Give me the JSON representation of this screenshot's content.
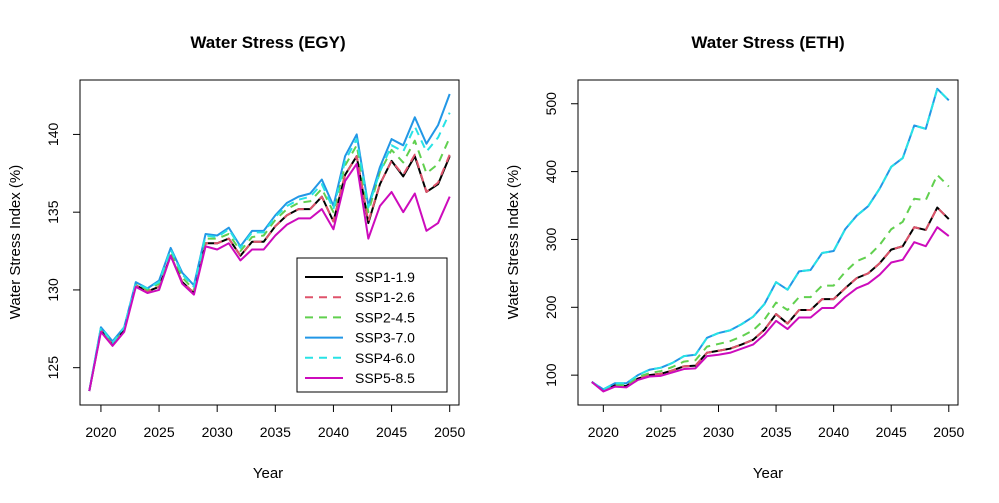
{
  "chart_data": [
    {
      "type": "line",
      "title": "Water Stress (EGY)",
      "xlabel": "Year",
      "ylabel": "Water Stress Index (%)",
      "xlim": [
        2019,
        2050
      ],
      "ylim": [
        123,
        143
      ],
      "xticks": [
        2020,
        2025,
        2030,
        2035,
        2040,
        2045,
        2050
      ],
      "yticks": [
        125,
        130,
        135,
        140
      ],
      "legend": "bottom-right",
      "x": [
        2019,
        2020,
        2021,
        2022,
        2023,
        2024,
        2025,
        2026,
        2027,
        2028,
        2029,
        2030,
        2031,
        2032,
        2033,
        2034,
        2035,
        2036,
        2037,
        2038,
        2039,
        2040,
        2041,
        2042,
        2043,
        2044,
        2045,
        2046,
        2047,
        2048,
        2049,
        2050
      ],
      "series": [
        {
          "name": "SSP1-1.9",
          "color": "#000000",
          "dash": "solid",
          "values": [
            123.5,
            127.4,
            126.5,
            127.4,
            130.3,
            129.9,
            130.2,
            132.2,
            130.5,
            129.8,
            133.0,
            133.0,
            133.3,
            132.2,
            133.1,
            133.1,
            134.1,
            134.8,
            135.2,
            135.2,
            136.0,
            134.4,
            137.4,
            138.6,
            134.3,
            136.8,
            138.3,
            137.3,
            138.6,
            136.3,
            136.8,
            138.6
          ]
        },
        {
          "name": "SSP1-2.6",
          "color": "#DF536B",
          "dash": "dashed",
          "values": [
            123.5,
            127.4,
            126.5,
            127.4,
            130.3,
            129.9,
            130.2,
            132.2,
            130.5,
            129.8,
            133.0,
            133.0,
            133.3,
            132.2,
            133.1,
            133.1,
            134.1,
            134.8,
            135.2,
            135.2,
            136.0,
            134.4,
            137.4,
            138.6,
            134.4,
            136.8,
            138.3,
            137.4,
            138.7,
            136.3,
            136.9,
            138.7
          ]
        },
        {
          "name": "SSP2-4.5",
          "color": "#61D04F",
          "dash": "dashed",
          "values": [
            123.5,
            127.5,
            126.6,
            127.5,
            130.4,
            130.0,
            130.4,
            132.5,
            130.8,
            130.0,
            133.3,
            133.3,
            133.6,
            132.5,
            133.4,
            133.5,
            134.5,
            135.2,
            135.6,
            135.7,
            136.5,
            135.0,
            138.0,
            139.3,
            135.0,
            137.6,
            139.0,
            138.2,
            139.6,
            137.5,
            138.1,
            139.8
          ]
        },
        {
          "name": "SSP3-7.0",
          "color": "#2297E6",
          "dash": "solid",
          "values": [
            123.5,
            127.6,
            126.7,
            127.6,
            130.5,
            130.1,
            130.6,
            132.7,
            131.1,
            130.3,
            133.6,
            133.5,
            134.0,
            132.8,
            133.8,
            133.8,
            134.8,
            135.6,
            136.0,
            136.2,
            137.1,
            135.4,
            138.6,
            140.0,
            135.4,
            137.9,
            139.7,
            139.3,
            141.1,
            139.4,
            140.6,
            142.6
          ]
        },
        {
          "name": "SSP4-6.0",
          "color": "#28E2E5",
          "dash": "dashed",
          "values": [
            123.5,
            127.6,
            126.6,
            127.6,
            130.4,
            130.1,
            130.5,
            132.6,
            131.0,
            130.2,
            133.5,
            133.4,
            133.9,
            132.7,
            133.7,
            133.7,
            134.7,
            135.4,
            135.8,
            136.0,
            136.8,
            135.2,
            138.3,
            139.7,
            135.3,
            137.6,
            139.3,
            138.9,
            140.5,
            138.9,
            139.8,
            141.4
          ]
        },
        {
          "name": "SSP5-8.5",
          "color": "#CD0BBC",
          "dash": "solid",
          "values": [
            123.5,
            127.3,
            126.4,
            127.3,
            130.2,
            129.8,
            130.0,
            132.2,
            130.4,
            129.7,
            132.8,
            132.6,
            133.0,
            131.9,
            132.6,
            132.6,
            133.5,
            134.2,
            134.6,
            134.6,
            135.2,
            133.9,
            137.0,
            138.1,
            133.3,
            135.4,
            136.3,
            135.0,
            136.2,
            133.8,
            134.3,
            136.0
          ]
        }
      ]
    },
    {
      "type": "line",
      "title": "Water Stress (ETH)",
      "xlabel": "Year",
      "ylabel": "Water Stress Index (%)",
      "xlim": [
        2019,
        2050
      ],
      "ylim": [
        75,
        520
      ],
      "xticks": [
        2020,
        2025,
        2030,
        2035,
        2040,
        2045,
        2050
      ],
      "yticks": [
        100,
        200,
        300,
        400,
        500
      ],
      "x": [
        2019,
        2020,
        2021,
        2022,
        2023,
        2024,
        2025,
        2026,
        2027,
        2028,
        2029,
        2030,
        2031,
        2032,
        2033,
        2034,
        2035,
        2036,
        2037,
        2038,
        2039,
        2040,
        2041,
        2042,
        2043,
        2044,
        2045,
        2046,
        2047,
        2048,
        2049,
        2050
      ],
      "series": [
        {
          "name": "SSP1-1.9",
          "color": "#000000",
          "dash": "solid",
          "values": [
            90,
            77,
            85,
            84,
            95,
            100,
            102,
            107,
            113,
            114,
            133,
            136,
            139,
            145,
            152,
            167,
            190,
            176,
            196,
            196,
            212,
            212,
            228,
            243,
            250,
            265,
            285,
            290,
            318,
            314,
            347,
            330
          ]
        },
        {
          "name": "SSP1-2.6",
          "color": "#DF536B",
          "dash": "dashed",
          "values": [
            90,
            77,
            85,
            84,
            95,
            100,
            102,
            107,
            113,
            114,
            133,
            136,
            139,
            145,
            152,
            167,
            190,
            176,
            196,
            196,
            212,
            212,
            228,
            243,
            250,
            265,
            285,
            290,
            318,
            314,
            347,
            330
          ]
        },
        {
          "name": "SSP2-4.5",
          "color": "#61D04F",
          "dash": "dashed",
          "values": [
            90,
            78,
            86,
            85,
            97,
            103,
            106,
            112,
            120,
            122,
            142,
            146,
            150,
            157,
            166,
            182,
            207,
            196,
            215,
            215,
            232,
            232,
            252,
            268,
            275,
            292,
            315,
            326,
            360,
            358,
            395,
            378
          ]
        },
        {
          "name": "SSP3-7.0",
          "color": "#2297E6",
          "dash": "solid",
          "values": [
            90,
            79,
            88,
            88,
            100,
            108,
            111,
            118,
            128,
            130,
            155,
            162,
            166,
            175,
            186,
            205,
            237,
            226,
            253,
            255,
            280,
            283,
            315,
            335,
            349,
            375,
            407,
            420,
            468,
            463,
            522,
            505
          ]
        },
        {
          "name": "SSP4-6.0",
          "color": "#28E2E5",
          "dash": "dashed",
          "values": [
            90,
            79,
            88,
            88,
            100,
            108,
            111,
            118,
            128,
            130,
            155,
            162,
            166,
            175,
            186,
            205,
            237,
            226,
            253,
            255,
            280,
            283,
            315,
            335,
            349,
            375,
            407,
            420,
            468,
            463,
            522,
            505
          ]
        },
        {
          "name": "SSP5-8.5",
          "color": "#CD0BBC",
          "dash": "solid",
          "values": [
            90,
            76,
            83,
            82,
            93,
            98,
            99,
            104,
            109,
            110,
            128,
            130,
            133,
            139,
            145,
            160,
            180,
            168,
            185,
            185,
            199,
            199,
            215,
            228,
            235,
            248,
            266,
            270,
            296,
            290,
            318,
            305
          ]
        }
      ]
    }
  ]
}
